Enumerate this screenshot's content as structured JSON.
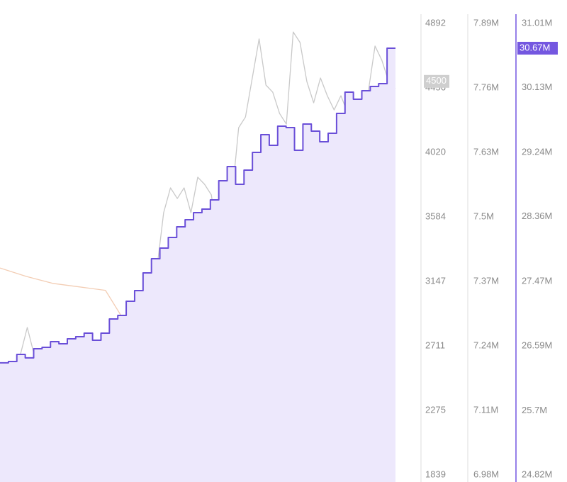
{
  "chart_data": {
    "type": "line",
    "grid": false,
    "ylim": [
      1839,
      4892
    ],
    "yticks": [
      4892,
      4456,
      4020,
      3584,
      3147,
      2711,
      2275,
      1839
    ],
    "y2lim": [
      6980000,
      7890000
    ],
    "y2ticks": [
      {
        "value": 7890000,
        "label": "7.89M"
      },
      {
        "value": 7760000,
        "label": "7.76M"
      },
      {
        "value": 7630000,
        "label": "7.63M"
      },
      {
        "value": 7500000,
        "label": "7.5M"
      },
      {
        "value": 7370000,
        "label": "7.37M"
      },
      {
        "value": 7240000,
        "label": "7.24M"
      },
      {
        "value": 7110000,
        "label": "7.11M"
      },
      {
        "value": 6980000,
        "label": "6.98M"
      }
    ],
    "y3lim": [
      24820000,
      31010000
    ],
    "y3ticks": [
      {
        "value": 31010000,
        "label": "31.01M"
      },
      {
        "value": 30130000,
        "label": "30.13M"
      },
      {
        "value": 29240000,
        "label": "29.24M"
      },
      {
        "value": 28360000,
        "label": "28.36M"
      },
      {
        "value": 27470000,
        "label": "27.47M"
      },
      {
        "value": 26590000,
        "label": "26.59M"
      },
      {
        "value": 25700000,
        "label": "25.7M"
      },
      {
        "value": 24820000,
        "label": "24.82M"
      }
    ],
    "series": [
      {
        "color": "#f3cdb4",
        "axis": "y2",
        "style": "line",
        "values": [
          7397000,
          7380000,
          7366000,
          7359000,
          7352000,
          7266000,
          7223000,
          7194000,
          7166000,
          7108000,
          7051000,
          6994000,
          null,
          null,
          null,
          null
        ]
      },
      {
        "color": "#c9c9c9",
        "axis": "y",
        "style": "line",
        "values": [
          2558,
          2462,
          2534,
          2654,
          2836,
          2654,
          2606,
          2534,
          2558,
          2510,
          2366,
          2174,
          2414,
          2438,
          2462,
          2486,
          2534,
          2558,
          2534,
          2606,
          2941,
          2941,
          3013,
          3229,
          3612,
          3780,
          3708,
          3780,
          3612,
          3852,
          3804,
          3732,
          3397,
          3660,
          3708,
          4187,
          4259,
          4523,
          4787,
          4475,
          4427,
          4283,
          4211,
          4834,
          4763,
          4499,
          4355,
          4523,
          4403,
          4307,
          4403,
          4283,
          4331,
          4355,
          4427,
          4739,
          4643,
          4499,
          4451
        ]
      },
      {
        "color": "#6a4fd8",
        "fill": "#ede8fc",
        "axis": "y3",
        "style": "step",
        "values": [
          26356000,
          26375000,
          26472000,
          26424000,
          26550000,
          26569000,
          26647000,
          26618000,
          26686000,
          26715000,
          26764000,
          26666000,
          26764000,
          26958000,
          27007000,
          27201000,
          27347000,
          27590000,
          27784000,
          27930000,
          28075000,
          28221000,
          28318000,
          28416000,
          28464000,
          28590000,
          28853000,
          29047000,
          28804000,
          28999000,
          29242000,
          29484000,
          29339000,
          29601000,
          29582000,
          29271000,
          29630000,
          29533000,
          29387000,
          29504000,
          29776000,
          30067000,
          29970000,
          30087000,
          30145000,
          30184000,
          30670000,
          30670000
        ]
      }
    ],
    "last_value_labels": [
      {
        "axis": "y",
        "value": 4500,
        "label": "4500",
        "color": "#cfcfcf"
      },
      {
        "axis": "y3",
        "value": 30670000,
        "label": "30.67M",
        "color": "#7457e0"
      }
    ]
  }
}
